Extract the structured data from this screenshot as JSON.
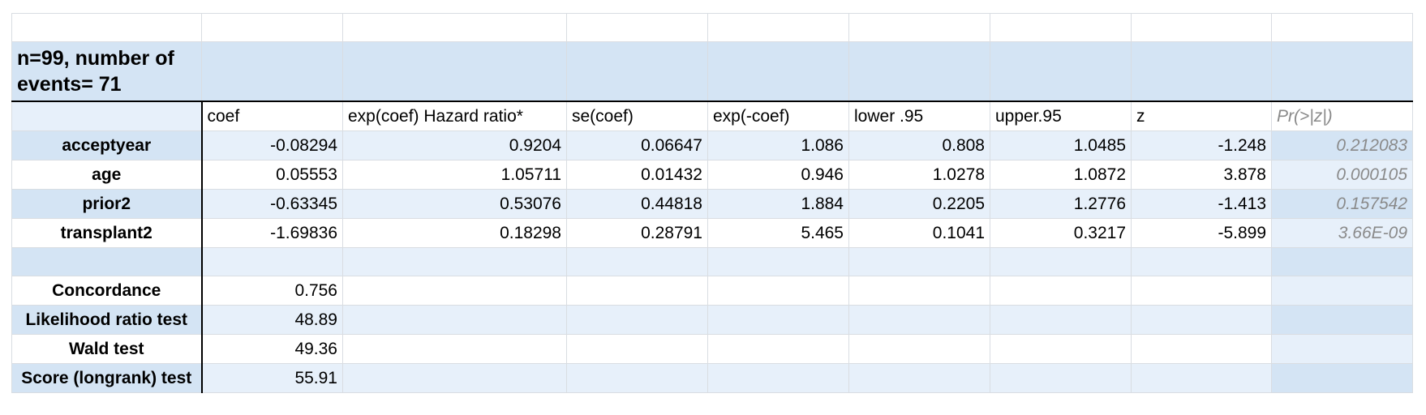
{
  "title": "n=99, number of events= 71",
  "columns": [
    "",
    "coef",
    "exp(coef) Hazard ratio*",
    "se(coef)",
    "exp(-coef)",
    "lower .95",
    "upper.95",
    "z",
    "Pr(>|z|)"
  ],
  "rows": [
    {
      "label": "acceptyear",
      "values": [
        "-0.08294",
        "0.9204",
        "0.06647",
        "1.086",
        "0.808",
        "1.0485",
        "-1.248",
        "0.212083"
      ]
    },
    {
      "label": "age",
      "values": [
        "0.05553",
        "1.05711",
        "0.01432",
        "0.946",
        "1.0278",
        "1.0872",
        "3.878",
        "0.000105"
      ]
    },
    {
      "label": "prior2",
      "values": [
        "-0.63345",
        "0.53076",
        "0.44818",
        "1.884",
        "0.2205",
        "1.2776",
        "-1.413",
        "0.157542"
      ]
    },
    {
      "label": "transplant2",
      "values": [
        "-1.69836",
        "0.18298",
        "0.28791",
        "5.465",
        "0.1041",
        "0.3217",
        "-5.899",
        "3.66E-09"
      ]
    }
  ],
  "stats": [
    {
      "label": "Concordance",
      "value": "0.756"
    },
    {
      "label": "Likelihood ratio test",
      "value": "48.89"
    },
    {
      "label": "Wald test",
      "value": "49.36"
    },
    {
      "label": "Score (longrank) test",
      "value": "55.91"
    }
  ]
}
